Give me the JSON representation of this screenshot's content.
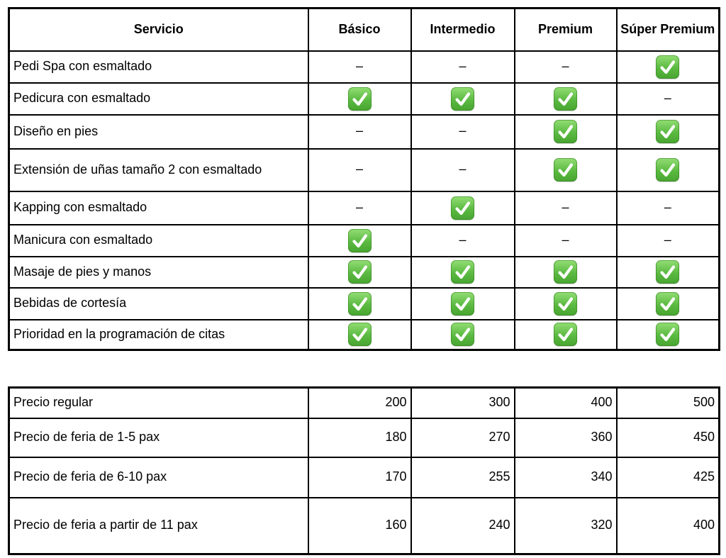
{
  "page": {
    "background": "#ffffff",
    "check_color": "#52b13a",
    "check_icon": "check-mark-icon",
    "dash": "–"
  },
  "services_table": {
    "columns": [
      "Servicio",
      "Básico",
      "Intermedio",
      "Premium",
      "Súper Premium"
    ],
    "rows": [
      {
        "service": "Pedi Spa con esmaltado",
        "tiers": [
          false,
          false,
          false,
          true
        ]
      },
      {
        "service": "Pedicura con esmaltado",
        "tiers": [
          true,
          true,
          true,
          false
        ]
      },
      {
        "service": "Diseño en pies",
        "tiers": [
          false,
          false,
          true,
          true
        ]
      },
      {
        "service": "Extensión de uñas tamaño 2 con esmaltado",
        "tiers": [
          false,
          false,
          true,
          true
        ]
      },
      {
        "service": "Kapping con esmaltado",
        "tiers": [
          false,
          true,
          false,
          false
        ]
      },
      {
        "service": "Manicura con esmaltado",
        "tiers": [
          true,
          false,
          false,
          false
        ]
      },
      {
        "service": "Masaje de pies y manos",
        "tiers": [
          true,
          true,
          true,
          true
        ]
      },
      {
        "service": "Bebidas de cortesía",
        "tiers": [
          true,
          true,
          true,
          true
        ]
      },
      {
        "service": "Prioridad en la programación de citas",
        "tiers": [
          true,
          true,
          true,
          true
        ]
      }
    ]
  },
  "prices_table": {
    "rows": [
      {
        "label": "Precio regular",
        "values": [
          "200",
          "300",
          "400",
          "500"
        ]
      },
      {
        "label": "Precio de feria de 1-5 pax",
        "values": [
          "180",
          "270",
          "360",
          "450"
        ]
      },
      {
        "label": "Precio de feria de 6-10 pax",
        "values": [
          "170",
          "255",
          "340",
          "425"
        ]
      },
      {
        "label": "Precio de feria a partir de 11 pax",
        "values": [
          "160",
          "240",
          "320",
          "400"
        ]
      }
    ]
  }
}
